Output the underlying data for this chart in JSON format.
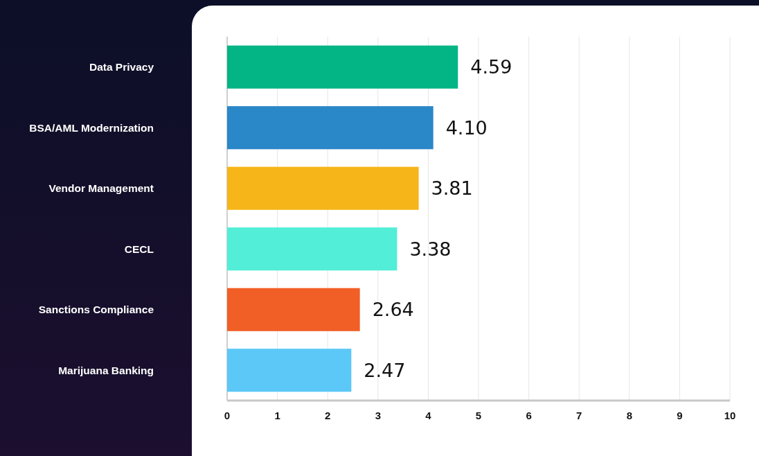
{
  "chart_data": {
    "type": "bar",
    "orientation": "horizontal",
    "categories": [
      "Data Privacy",
      "BSA/AML Modernization",
      "Vendor Management",
      "CECL",
      "Sanctions Compliance",
      "Marijuana Banking"
    ],
    "values": [
      4.59,
      4.1,
      3.81,
      3.38,
      2.64,
      2.47
    ],
    "value_labels": [
      "4.59",
      "4.10",
      "3.81",
      "3.38",
      "2.64",
      "2.47"
    ],
    "colors": [
      "#03b585",
      "#2a87c8",
      "#f6b619",
      "#52eed8",
      "#f15f26",
      "#5bc8f8"
    ],
    "xlim": [
      0,
      10
    ],
    "xticks": [
      0,
      1,
      2,
      3,
      4,
      5,
      6,
      7,
      8,
      9,
      10
    ],
    "grid": "x"
  }
}
